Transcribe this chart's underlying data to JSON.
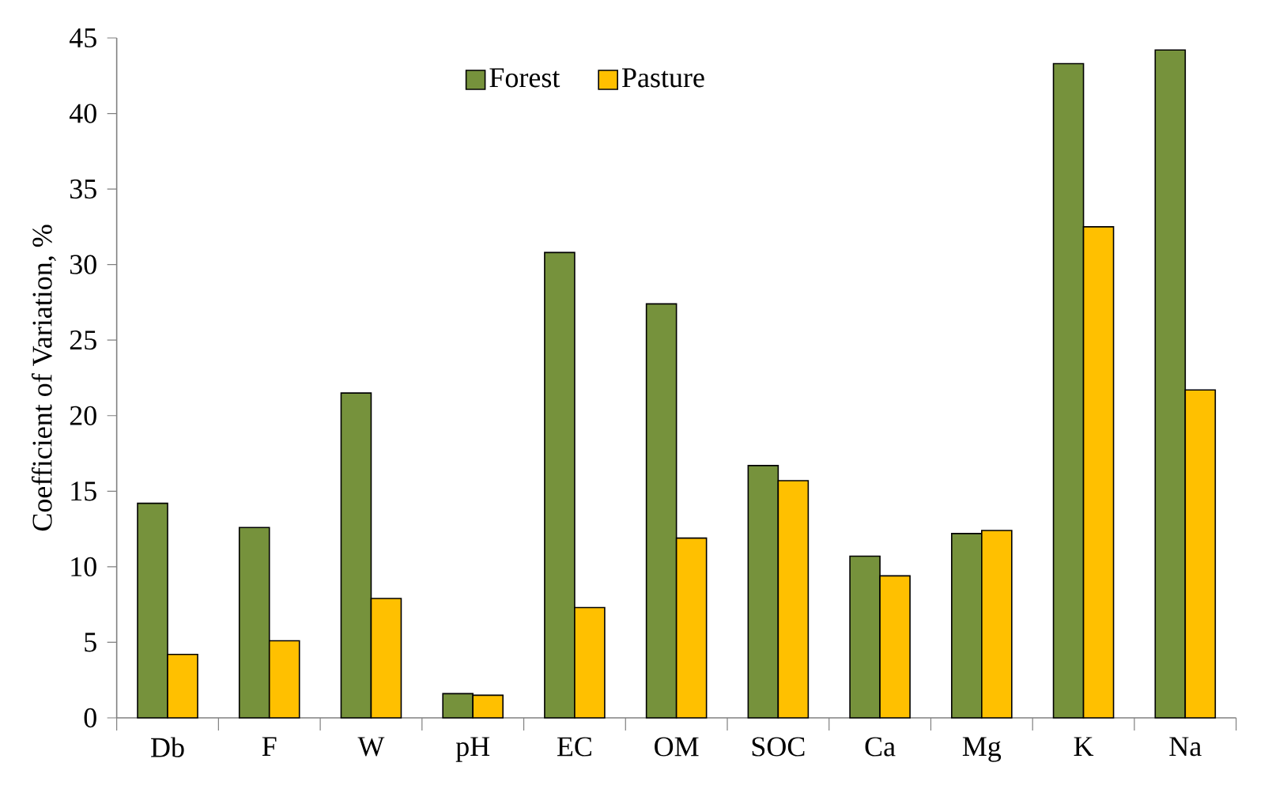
{
  "chart_data": {
    "type": "bar",
    "ylabel": "Coefficient of Variation, %",
    "categories": [
      "Db",
      "F",
      "W",
      "pH",
      "EC",
      "OM",
      "SOC",
      "Ca",
      "Mg",
      "K",
      "Na"
    ],
    "series": [
      {
        "name": "Forest",
        "color": "#76923c",
        "values": [
          14.2,
          12.6,
          21.5,
          1.6,
          30.8,
          27.4,
          16.7,
          10.7,
          12.2,
          43.3,
          44.2
        ]
      },
      {
        "name": "Pasture",
        "color": "#ffc000",
        "values": [
          4.2,
          5.1,
          7.9,
          1.5,
          7.3,
          11.9,
          15.7,
          9.4,
          12.4,
          32.5,
          21.7
        ]
      }
    ],
    "ylim": [
      0,
      45
    ],
    "yticks": [
      0,
      5,
      10,
      15,
      20,
      25,
      30,
      35,
      40,
      45
    ],
    "grid": false,
    "legend": "top"
  }
}
